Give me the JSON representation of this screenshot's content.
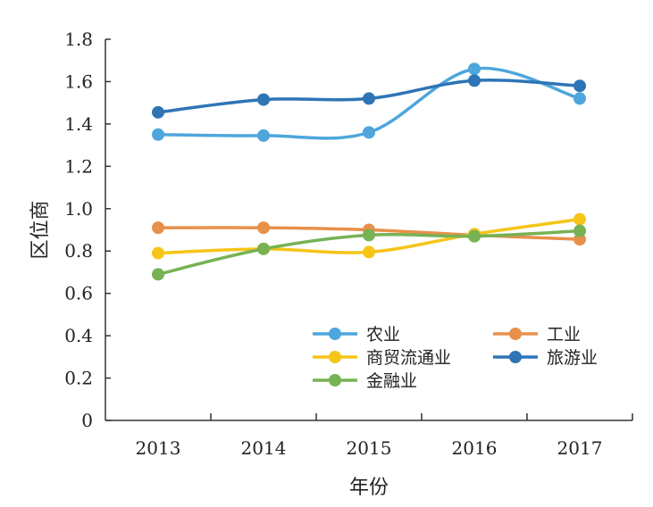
{
  "chart_data": {
    "type": "line",
    "title": "",
    "xlabel": "年份",
    "ylabel": "区位商",
    "categories": [
      "2013",
      "2014",
      "2015",
      "2016",
      "2017"
    ],
    "ylim": [
      0,
      1.8
    ],
    "yticks": [
      "0",
      "0.2",
      "0.4",
      "0.6",
      "0.8",
      "1.0",
      "1.2",
      "1.4",
      "1.6",
      "1.8"
    ],
    "grid": false,
    "legend_position": "bottom-right",
    "series": [
      {
        "name": "农业",
        "color": "#4ea6dc",
        "values": [
          1.35,
          1.345,
          1.36,
          1.66,
          1.52
        ]
      },
      {
        "name": "工业",
        "color": "#e8904a",
        "values": [
          0.91,
          0.91,
          0.9,
          0.875,
          0.855
        ]
      },
      {
        "name": "商贸流通业",
        "color": "#f5c518",
        "values": [
          0.79,
          0.81,
          0.795,
          0.88,
          0.95
        ]
      },
      {
        "name": "旅游业",
        "color": "#2e75b6",
        "values": [
          1.455,
          1.515,
          1.52,
          1.605,
          1.58
        ]
      },
      {
        "name": "金融业",
        "color": "#77b255",
        "values": [
          0.69,
          0.81,
          0.875,
          0.87,
          0.895
        ]
      }
    ]
  }
}
